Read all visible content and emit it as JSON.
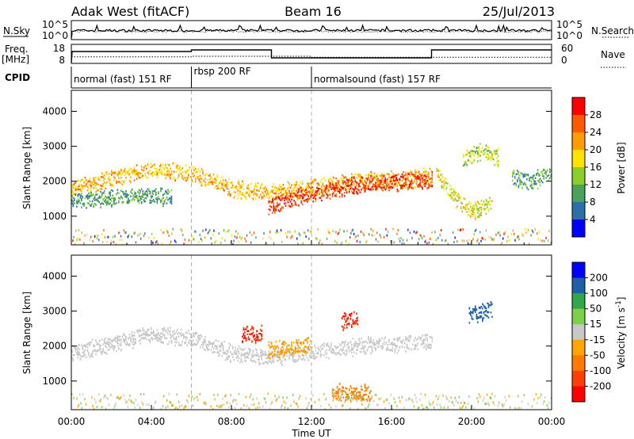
{
  "header": {
    "station": "Adak West (fitACF)",
    "beam": "Beam 16",
    "date": "25/Jul/2013"
  },
  "nsky_panel": {
    "left_label": "N.Sky",
    "left_ticks": [
      "10^5",
      "10^0"
    ],
    "right_ticks": [
      "10^5",
      "10^0"
    ],
    "right_label": "N.Search"
  },
  "freq_panel": {
    "label_line1": "Freq.",
    "label_line2": "[MHz]",
    "left_ticks": [
      "18",
      "8"
    ],
    "right_ticks": [
      "60",
      "0"
    ],
    "right_label": "Nave"
  },
  "cpid_panel": {
    "label": "CPID",
    "modes": [
      {
        "name": "normal (fast) 151 RF",
        "start_h": 0,
        "end_h": 6
      },
      {
        "name": "rbsp 200 RF",
        "start_h": 6,
        "end_h": 12
      },
      {
        "name": "normalsound (fast) 157 RF",
        "start_h": 12,
        "end_h": 24
      }
    ]
  },
  "x_axis": {
    "label": "Time UT",
    "ticks": [
      "00:00",
      "04:00",
      "08:00",
      "12:00",
      "16:00",
      "20:00",
      "00:00"
    ],
    "tick_hours": [
      0,
      4,
      8,
      12,
      16,
      20,
      24
    ],
    "range_hours": [
      0,
      24
    ]
  },
  "power_colorbar": {
    "label": "Power [dB]",
    "ticks": [
      "28",
      "24",
      "20",
      "16",
      "12",
      "8",
      "4"
    ],
    "colors": [
      "#ff0000",
      "#ff5a00",
      "#ff9c00",
      "#ffe300",
      "#8ccf2c",
      "#4aa35a",
      "#2f6fa8",
      "#0000ff"
    ]
  },
  "velocity_colorbar": {
    "label": "Velocity [m s",
    "label_superscript": "-1",
    "label_close": "]",
    "ticks": [
      "200",
      "100",
      "50",
      "15",
      "-15",
      "-50",
      "-100",
      "-200"
    ],
    "colors": [
      "#0000ff",
      "#1e5fa8",
      "#31a64a",
      "#7ed04a",
      "#c8c8c8",
      "#ffa500",
      "#ff7a00",
      "#ff4000",
      "#ff0000"
    ]
  },
  "chart_data": [
    {
      "type": "heatmap",
      "title": "Power",
      "ylabel": "Slant Range [km]",
      "xlabel": "",
      "yticks": [
        1000,
        2000,
        3000,
        4000
      ],
      "ylim": [
        180,
        4600
      ],
      "x_range_hours": [
        0,
        24
      ],
      "colorbar": {
        "label": "Power [dB]",
        "range": [
          0,
          30
        ]
      },
      "echo_bands": [
        {
          "range_km_by_hour": [
            [
              0,
              1800
            ],
            [
              2,
              2100
            ],
            [
              4,
              2350
            ],
            [
              6,
              2250
            ],
            [
              8,
              1800
            ],
            [
              10,
              1700
            ],
            [
              12,
              1850
            ],
            [
              14,
              2000
            ],
            [
              16,
              2050
            ],
            [
              18,
              2150
            ]
          ],
          "power_db": 20
        },
        {
          "range_km_by_hour": [
            [
              0,
              1450
            ],
            [
              2,
              1550
            ],
            [
              4,
              1600
            ],
            [
              5,
              1550
            ]
          ],
          "power_db": 8
        },
        {
          "range_km_by_hour": [
            [
              9.8,
              1300
            ],
            [
              11,
              1500
            ],
            [
              12,
              1650
            ],
            [
              14,
              1900
            ],
            [
              16,
              2000
            ],
            [
              18,
              2050
            ]
          ],
          "power_db": 28
        },
        {
          "range_km_by_hour": [
            [
              18.2,
              2300
            ],
            [
              19.2,
              1500
            ],
            [
              20,
              1150
            ],
            [
              21,
              1350
            ]
          ],
          "power_db": 16
        },
        {
          "range_km_by_hour": [
            [
              19.5,
              2600
            ],
            [
              20.5,
              2900
            ],
            [
              21.3,
              2700
            ]
          ],
          "power_db": 14
        },
        {
          "range_km_by_hour": [
            [
              22,
              2100
            ],
            [
              23,
              2000
            ],
            [
              24,
              2300
            ]
          ],
          "power_db": 8
        }
      ]
    },
    {
      "type": "heatmap",
      "title": "Velocity",
      "ylabel": "Slant Range [km]",
      "xlabel": "Time UT",
      "yticks": [
        1000,
        2000,
        3000,
        4000
      ],
      "ylim": [
        180,
        4600
      ],
      "x_range_hours": [
        0,
        24
      ],
      "colorbar": {
        "label": "Velocity [m s-1]",
        "range": [
          -200,
          200
        ]
      },
      "echo_bands": [
        {
          "range_km_by_hour": [
            [
              0,
              1800
            ],
            [
              2,
              2100
            ],
            [
              4,
              2350
            ],
            [
              6,
              2250
            ],
            [
              8,
              1800
            ],
            [
              10,
              1700
            ],
            [
              12,
              1850
            ],
            [
              14,
              2000
            ],
            [
              16,
              2050
            ],
            [
              18,
              2150
            ]
          ],
          "velocity": 0
        },
        {
          "range_km_by_hour": [
            [
              9.8,
              1900
            ],
            [
              11,
              2000
            ],
            [
              12,
              2050
            ]
          ],
          "velocity": -40
        },
        {
          "range_km_by_hour": [
            [
              8.5,
              2350
            ],
            [
              9.5,
              2350
            ]
          ],
          "velocity": -200
        },
        {
          "range_km_by_hour": [
            [
              13.5,
              2750
            ],
            [
              14.3,
              2800
            ]
          ],
          "velocity": -200
        },
        {
          "range_km_by_hour": [
            [
              19.8,
              2900
            ],
            [
              21,
              3050
            ]
          ],
          "velocity": 150
        },
        {
          "range_km_by_hour": [
            [
              13,
              700
            ],
            [
              15,
              650
            ]
          ],
          "velocity": -60
        }
      ]
    },
    {
      "type": "line",
      "title": "N.Sky / N.Search",
      "x_range_hours": [
        0,
        24
      ],
      "series": [
        {
          "name": "N.Sky",
          "x": [
            0,
            6,
            12,
            18,
            24
          ],
          "y_log10": [
            1.2,
            1.2,
            1.3,
            1.2,
            1.2
          ]
        }
      ]
    },
    {
      "type": "line",
      "title": "Freq. / Nave",
      "x_range_hours": [
        0,
        24
      ],
      "series": [
        {
          "name": "Freq.",
          "x": [
            0,
            6,
            6,
            10,
            10,
            18,
            18,
            24
          ],
          "y": [
            15,
            15,
            16,
            16,
            11,
            11,
            16,
            16
          ]
        },
        {
          "name": "Nave",
          "x": [
            0,
            6,
            6,
            12,
            12,
            24
          ],
          "y": [
            22,
            22,
            24,
            24,
            20,
            20
          ]
        }
      ]
    }
  ]
}
